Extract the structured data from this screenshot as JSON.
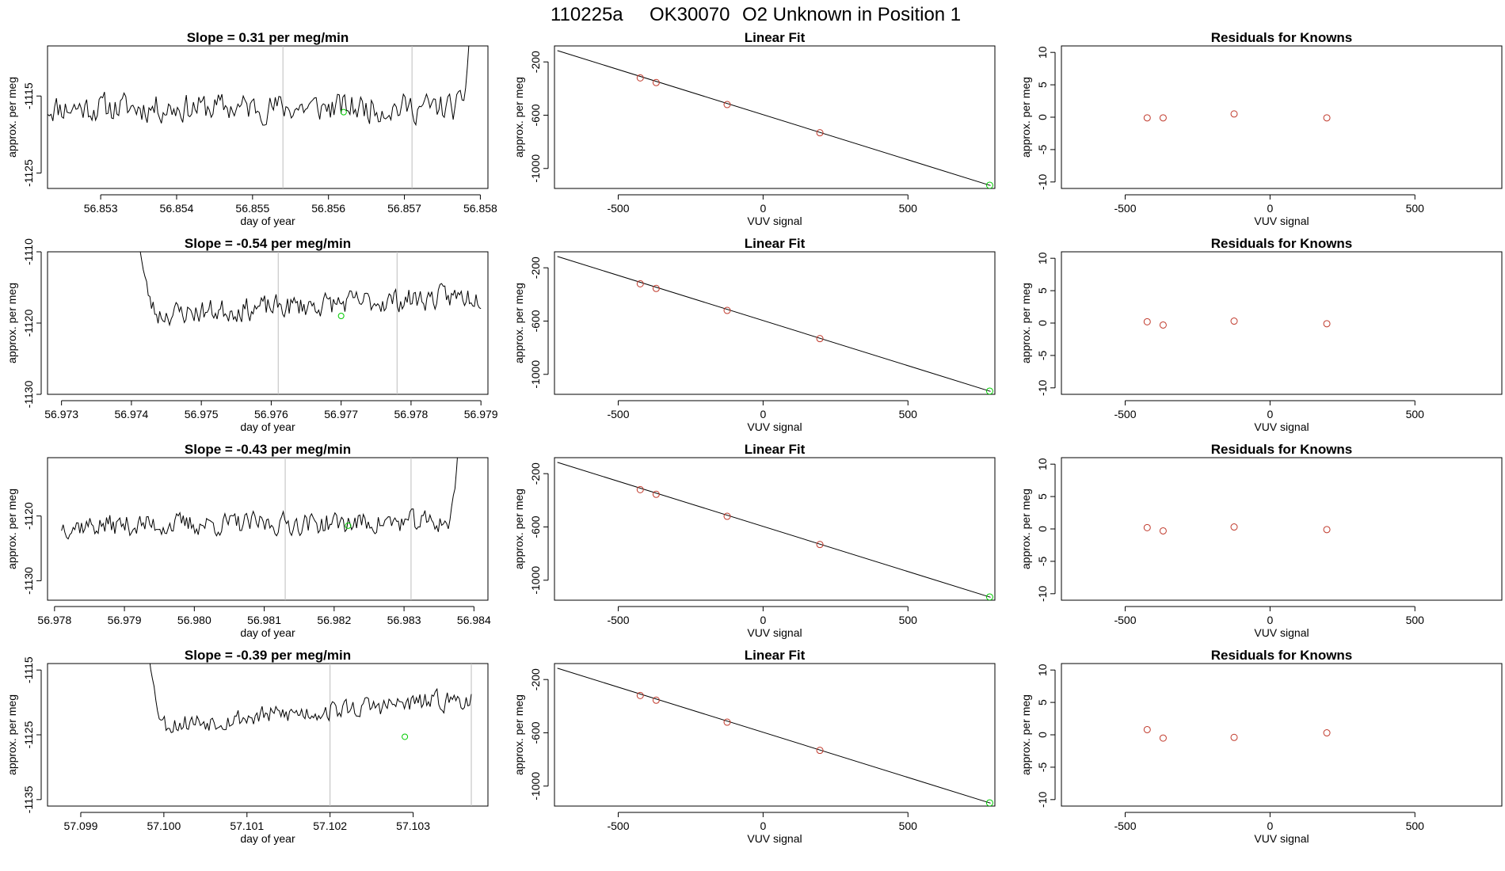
{
  "title_parts": [
    "110225a",
    "OK30070",
    "O2 Unknown in Position  1"
  ],
  "colors": {
    "known": "#c0392b",
    "unknown": "#00cc00",
    "line": "#000000",
    "reference_line": "#bdbdbd"
  },
  "chart_data": [
    {
      "type": "line",
      "row": 0,
      "col": 0,
      "title": "Slope =  0.31  per meg/min",
      "xlabel": "day of year",
      "ylabel": "approx. per meg",
      "xlim": [
        56.8523,
        56.8581
      ],
      "ylim": [
        -1127,
        -1108.5
      ],
      "xticks": [
        "56.853",
        "56.854",
        "56.855",
        "56.856",
        "56.857",
        "56.858"
      ],
      "yticks": [
        "-1115",
        "-1125"
      ],
      "x_start": 56.8523,
      "x_end": 56.8579,
      "n_points": 240,
      "base": -1116.5,
      "amp": 2.6,
      "trend": 0.0,
      "seed": 11,
      "start_spike": 0,
      "end_spike": -1100,
      "vlines": [
        56.8554,
        56.8571
      ],
      "marker": {
        "x": 56.8562,
        "y": -1117.1
      }
    },
    {
      "type": "line",
      "row": 1,
      "col": 0,
      "title": "Slope =  -0.54  per meg/min",
      "xlabel": "day of year",
      "ylabel": "approx. per meg",
      "xlim": [
        56.9728,
        56.9791
      ],
      "ylim": [
        -1130,
        -1110
      ],
      "xticks": [
        "56.973",
        "56.974",
        "56.975",
        "56.976",
        "56.977",
        "56.978",
        "56.979"
      ],
      "yticks": [
        "-1110",
        "-1120",
        "-1130"
      ],
      "x_start": 56.9741,
      "x_end": 56.979,
      "n_points": 210,
      "base": -1117.5,
      "amp": 2.3,
      "trend": -2.8,
      "seed": 23,
      "start_spike": -1108,
      "end_spike": 0,
      "vlines": [
        56.9761,
        56.9778
      ],
      "marker": {
        "x": 56.977,
        "y": -1119.0
      }
    },
    {
      "type": "line",
      "row": 2,
      "col": 0,
      "title": "Slope =  -0.43  per meg/min",
      "xlabel": "day of year",
      "ylabel": "approx. per meg",
      "xlim": [
        56.9779,
        56.9842
      ],
      "ylim": [
        -1133,
        -1111
      ],
      "xticks": [
        "56.979",
        "56.980",
        "56.981",
        "56.982",
        "56.983",
        "56.984"
      ],
      "xticks_extra_left": "56.978",
      "yticks": [
        "-1120",
        "-1130"
      ],
      "x_start": 56.9781,
      "x_end": 56.9838,
      "n_points": 240,
      "base": -1121.2,
      "amp": 2.4,
      "trend": -0.6,
      "seed": 37,
      "start_spike": 0,
      "end_spike": -1105,
      "vlines": [
        56.9813,
        56.9831
      ],
      "marker": {
        "x": 56.9822,
        "y": -1121.5
      }
    },
    {
      "type": "line",
      "row": 3,
      "col": 0,
      "title": "Slope =  -0.39  per meg/min",
      "xlabel": "day of year",
      "ylabel": "approx. per meg",
      "xlim": [
        57.0986,
        57.1039
      ],
      "ylim": [
        -1136,
        -1114
      ],
      "xticks": [
        "57.099",
        "57.100",
        "57.101",
        "57.102",
        "57.103"
      ],
      "yticks": [
        "-1115",
        "-1125",
        "-1135"
      ],
      "x_start": 57.0998,
      "x_end": 57.1037,
      "n_points": 190,
      "base": -1121.5,
      "amp": 2.2,
      "trend": -4.2,
      "seed": 53,
      "start_spike": -1110,
      "end_spike": 0,
      "vlines": [
        57.102,
        57.1037
      ],
      "marker": {
        "x": 57.1029,
        "y": -1125.3
      }
    },
    {
      "type": "scatter",
      "row": 0,
      "col": 1,
      "title": "Linear Fit",
      "xlabel": "VUV signal",
      "ylabel": "approx. per meg",
      "xlim": [
        -720,
        800
      ],
      "ylim": [
        -1150,
        -80
      ],
      "xticks": [
        "-500",
        "0",
        "500"
      ],
      "yticks": [
        "-200",
        "-600",
        "-1000"
      ],
      "fit_line": {
        "x": [
          -710,
          785
        ],
        "y": [
          -115,
          -1128
        ]
      },
      "knowns": [
        [
          -424,
          -320
        ],
        [
          -369,
          -355
        ],
        [
          -124,
          -520
        ],
        [
          196,
          -732
        ]
      ],
      "unknown": [
        782,
        -1126
      ]
    },
    {
      "type": "scatter",
      "row": 1,
      "col": 1,
      "title": "Linear Fit",
      "xlabel": "VUV signal",
      "ylabel": "approx. per meg",
      "xlim": [
        -720,
        800
      ],
      "ylim": [
        -1150,
        -80
      ],
      "xticks": [
        "-500",
        "0",
        "500"
      ],
      "yticks": [
        "-200",
        "-600",
        "-1000"
      ],
      "fit_line": {
        "x": [
          -710,
          785
        ],
        "y": [
          -115,
          -1128
        ]
      },
      "knowns": [
        [
          -424,
          -320
        ],
        [
          -369,
          -355
        ],
        [
          -124,
          -520
        ],
        [
          196,
          -732
        ]
      ],
      "unknown": [
        782,
        -1126
      ]
    },
    {
      "type": "scatter",
      "row": 2,
      "col": 1,
      "title": "Linear Fit",
      "xlabel": "VUV signal",
      "ylabel": "approx. per meg",
      "xlim": [
        -720,
        800
      ],
      "ylim": [
        -1150,
        -80
      ],
      "xticks": [
        "-500",
        "0",
        "500"
      ],
      "yticks": [
        "-200",
        "-600",
        "-1000"
      ],
      "fit_line": {
        "x": [
          -710,
          785
        ],
        "y": [
          -115,
          -1128
        ]
      },
      "knowns": [
        [
          -424,
          -320
        ],
        [
          -369,
          -355
        ],
        [
          -124,
          -520
        ],
        [
          196,
          -732
        ]
      ],
      "unknown": [
        782,
        -1126
      ]
    },
    {
      "type": "scatter",
      "row": 3,
      "col": 1,
      "title": "Linear Fit",
      "xlabel": "VUV signal",
      "ylabel": "approx. per meg",
      "xlim": [
        -720,
        800
      ],
      "ylim": [
        -1150,
        -80
      ],
      "xticks": [
        "-500",
        "0",
        "500"
      ],
      "yticks": [
        "-200",
        "-600",
        "-1000"
      ],
      "fit_line": {
        "x": [
          -710,
          785
        ],
        "y": [
          -115,
          -1128
        ]
      },
      "knowns": [
        [
          -424,
          -320
        ],
        [
          -369,
          -355
        ],
        [
          -124,
          -520
        ],
        [
          196,
          -732
        ]
      ],
      "unknown": [
        782,
        -1126
      ]
    },
    {
      "type": "scatter",
      "row": 0,
      "col": 2,
      "title": "Residuals for Knowns",
      "xlabel": "VUV signal",
      "ylabel": "approx. per meg",
      "xlim": [
        -720,
        800
      ],
      "ylim": [
        -11,
        11
      ],
      "xticks": [
        "-500",
        "0",
        "500"
      ],
      "yticks": [
        "10",
        "5",
        "0",
        "-5",
        "-10"
      ],
      "points": [
        [
          -424,
          -0.1
        ],
        [
          -369,
          -0.1
        ],
        [
          -124,
          0.5
        ],
        [
          196,
          -0.1
        ]
      ]
    },
    {
      "type": "scatter",
      "row": 1,
      "col": 2,
      "title": "Residuals for Knowns",
      "xlabel": "VUV signal",
      "ylabel": "approx. per meg",
      "xlim": [
        -720,
        800
      ],
      "ylim": [
        -11,
        11
      ],
      "xticks": [
        "-500",
        "0",
        "500"
      ],
      "yticks": [
        "10",
        "5",
        "0",
        "-5",
        "-10"
      ],
      "points": [
        [
          -424,
          0.2
        ],
        [
          -369,
          -0.3
        ],
        [
          -124,
          0.3
        ],
        [
          196,
          -0.1
        ]
      ]
    },
    {
      "type": "scatter",
      "row": 2,
      "col": 2,
      "title": "Residuals for Knowns",
      "xlabel": "VUV signal",
      "ylabel": "approx. per meg",
      "xlim": [
        -720,
        800
      ],
      "ylim": [
        -11,
        11
      ],
      "xticks": [
        "-500",
        "0",
        "500"
      ],
      "yticks": [
        "10",
        "5",
        "0",
        "-5",
        "-10"
      ],
      "points": [
        [
          -424,
          0.2
        ],
        [
          -369,
          -0.3
        ],
        [
          -124,
          0.3
        ],
        [
          196,
          -0.1
        ]
      ]
    },
    {
      "type": "scatter",
      "row": 3,
      "col": 2,
      "title": "Residuals for Knowns",
      "xlabel": "VUV signal",
      "ylabel": "approx. per meg",
      "xlim": [
        -720,
        800
      ],
      "ylim": [
        -11,
        11
      ],
      "xticks": [
        "-500",
        "0",
        "500"
      ],
      "yticks": [
        "10",
        "5",
        "0",
        "-5",
        "-10"
      ],
      "points": [
        [
          -424,
          0.8
        ],
        [
          -369,
          -0.5
        ],
        [
          -124,
          -0.4
        ],
        [
          196,
          0.3
        ]
      ]
    }
  ]
}
